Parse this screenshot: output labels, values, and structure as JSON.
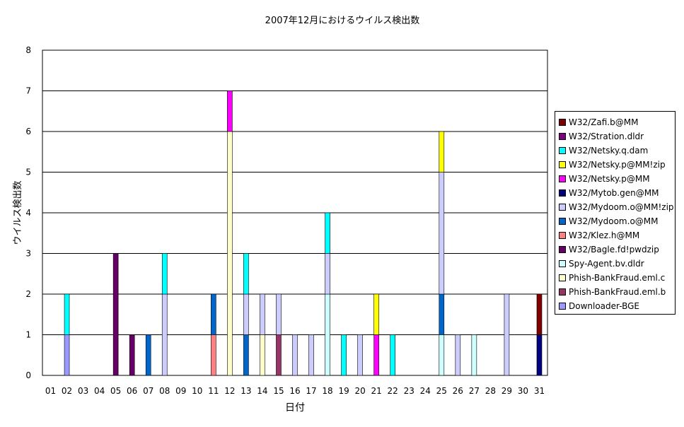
{
  "chart_data": {
    "type": "bar",
    "stacked": true,
    "title": "2007年12月におけるウイルス検出数",
    "xlabel": "日付",
    "ylabel": "ウイルス検出数",
    "ylim": [
      0,
      8
    ],
    "yticks": [
      "0",
      "1",
      "2",
      "3",
      "4",
      "5",
      "6",
      "7",
      "8"
    ],
    "grid": true,
    "legend_position": "right",
    "categories": [
      "01",
      "02",
      "03",
      "04",
      "05",
      "06",
      "07",
      "08",
      "09",
      "10",
      "11",
      "12",
      "13",
      "14",
      "15",
      "16",
      "17",
      "18",
      "19",
      "20",
      "21",
      "22",
      "23",
      "24",
      "25",
      "26",
      "27",
      "28",
      "29",
      "30",
      "31"
    ],
    "series": [
      {
        "name": "Downloader-BGE",
        "color": "#9999ff",
        "values": [
          0,
          1,
          0,
          0,
          0,
          0,
          0,
          0,
          0,
          0,
          0,
          0,
          0,
          0,
          0,
          0,
          0,
          0,
          0,
          0,
          0,
          0,
          0,
          0,
          0,
          0,
          0,
          0,
          0,
          0,
          0
        ]
      },
      {
        "name": "Phish-BankFraud.eml.b",
        "color": "#993366",
        "values": [
          0,
          0,
          0,
          0,
          0,
          0,
          0,
          0,
          0,
          0,
          0,
          0,
          0,
          0,
          1,
          0,
          0,
          0,
          0,
          0,
          0,
          0,
          0,
          0,
          0,
          0,
          0,
          0,
          0,
          0,
          0
        ]
      },
      {
        "name": "Phish-BankFraud.eml.c",
        "color": "#ffffcc",
        "values": [
          0,
          0,
          0,
          0,
          0,
          0,
          0,
          0,
          0,
          0,
          0,
          6,
          0,
          1,
          0,
          0,
          0,
          0,
          0,
          0,
          0,
          0,
          0,
          0,
          0,
          0,
          0,
          0,
          0,
          0,
          0
        ]
      },
      {
        "name": "Spy-Agent.bv.dldr",
        "color": "#ccffff",
        "values": [
          0,
          0,
          0,
          0,
          0,
          0,
          0,
          0,
          0,
          0,
          0,
          0,
          0,
          0,
          0,
          0,
          0,
          2,
          0,
          0,
          0,
          0,
          0,
          0,
          1,
          0,
          1,
          0,
          0,
          0,
          0
        ]
      },
      {
        "name": "W32/Bagle.fd!pwdzip",
        "color": "#660066",
        "values": [
          0,
          0,
          0,
          0,
          3,
          1,
          0,
          0,
          0,
          0,
          0,
          0,
          0,
          0,
          0,
          0,
          0,
          0,
          0,
          0,
          0,
          0,
          0,
          0,
          0,
          0,
          0,
          0,
          0,
          0,
          0
        ]
      },
      {
        "name": "W32/Klez.h@MM",
        "color": "#ff8080",
        "values": [
          0,
          0,
          0,
          0,
          0,
          0,
          0,
          0,
          0,
          0,
          1,
          0,
          0,
          0,
          0,
          0,
          0,
          0,
          0,
          0,
          0,
          0,
          0,
          0,
          0,
          0,
          0,
          0,
          0,
          0,
          0
        ]
      },
      {
        "name": "W32/Mydoom.o@MM",
        "color": "#0066cc",
        "values": [
          0,
          0,
          0,
          0,
          0,
          0,
          1,
          0,
          0,
          0,
          1,
          0,
          1,
          0,
          0,
          0,
          0,
          0,
          0,
          0,
          0,
          0,
          0,
          0,
          1,
          0,
          0,
          0,
          0,
          0,
          0
        ]
      },
      {
        "name": "W32/Mydoom.o@MM!zip",
        "color": "#ccccff",
        "values": [
          0,
          0,
          0,
          0,
          0,
          0,
          0,
          2,
          0,
          0,
          0,
          0,
          1,
          1,
          1,
          1,
          1,
          1,
          0,
          1,
          0,
          0,
          0,
          0,
          3,
          1,
          0,
          0,
          2,
          0,
          0
        ]
      },
      {
        "name": "W32/Mytob.gen@MM",
        "color": "#000080",
        "values": [
          0,
          0,
          0,
          0,
          0,
          0,
          0,
          0,
          0,
          0,
          0,
          0,
          0,
          0,
          0,
          0,
          0,
          0,
          0,
          0,
          0,
          0,
          0,
          0,
          0,
          0,
          0,
          0,
          0,
          0,
          1
        ]
      },
      {
        "name": "W32/Netsky.p@MM",
        "color": "#ff00ff",
        "values": [
          0,
          0,
          0,
          0,
          0,
          0,
          0,
          0,
          0,
          0,
          0,
          1,
          0,
          0,
          0,
          0,
          0,
          0,
          0,
          0,
          1,
          0,
          0,
          0,
          0,
          0,
          0,
          0,
          0,
          0,
          0
        ]
      },
      {
        "name": "W32/Netsky.p@MM!zip",
        "color": "#ffff00",
        "values": [
          0,
          0,
          0,
          0,
          0,
          0,
          0,
          0,
          0,
          0,
          0,
          0,
          0,
          0,
          0,
          0,
          0,
          0,
          0,
          0,
          1,
          0,
          0,
          0,
          1,
          0,
          0,
          0,
          0,
          0,
          0
        ]
      },
      {
        "name": "W32/Netsky.q.dam",
        "color": "#00ffff",
        "values": [
          0,
          1,
          0,
          0,
          0,
          0,
          0,
          1,
          0,
          0,
          0,
          0,
          1,
          0,
          0,
          0,
          0,
          1,
          1,
          0,
          0,
          1,
          0,
          0,
          0,
          0,
          0,
          0,
          0,
          0,
          0
        ]
      },
      {
        "name": "W32/Stration.dldr",
        "color": "#800080",
        "values": [
          0,
          0,
          0,
          0,
          0,
          0,
          0,
          0,
          0,
          0,
          0,
          0,
          0,
          0,
          0,
          0,
          0,
          0,
          0,
          0,
          0,
          0,
          0,
          0,
          0,
          0,
          0,
          0,
          0,
          0,
          0
        ]
      },
      {
        "name": "W32/Zafi.b@MM",
        "color": "#800000",
        "values": [
          0,
          0,
          0,
          0,
          0,
          0,
          0,
          0,
          0,
          0,
          0,
          0,
          0,
          0,
          0,
          0,
          0,
          0,
          0,
          0,
          0,
          0,
          0,
          0,
          0,
          0,
          0,
          0,
          0,
          0,
          1
        ]
      }
    ]
  }
}
